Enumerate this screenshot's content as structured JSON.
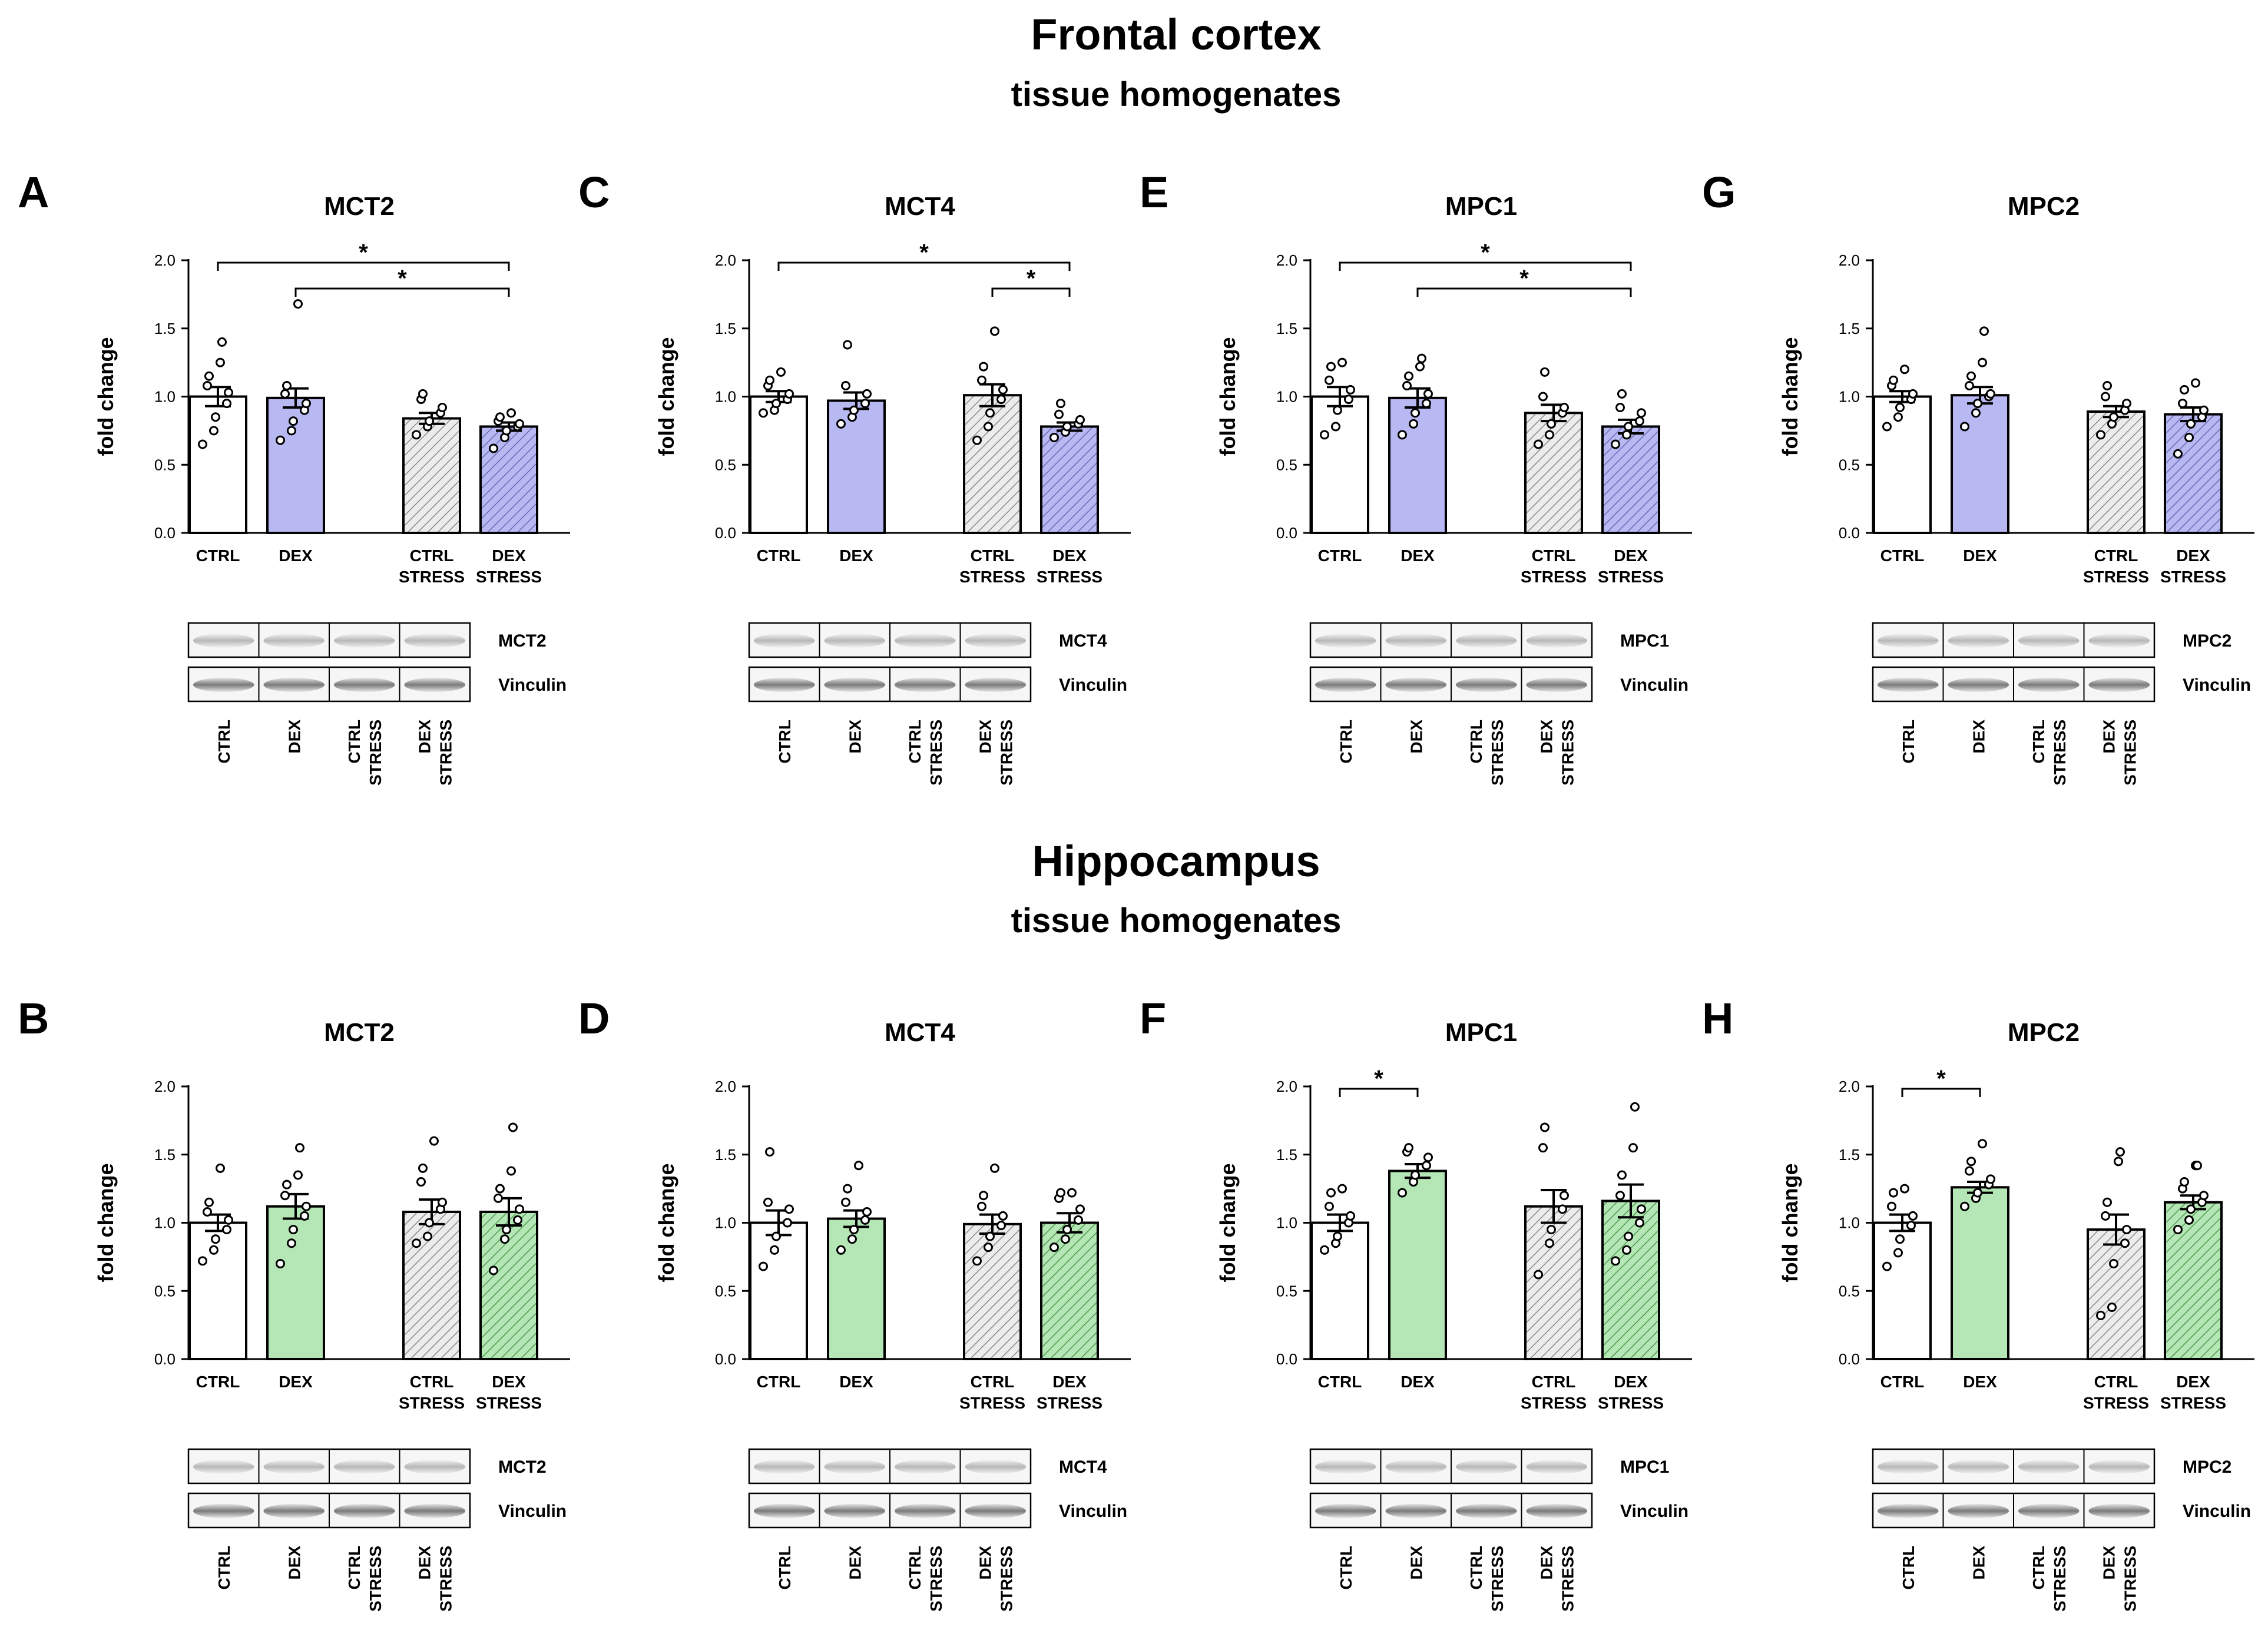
{
  "sections": [
    {
      "title": "Frontal cortex",
      "subtitle": "tissue homogenates"
    },
    {
      "title": "Hippocampus",
      "subtitle": "tissue homogenates"
    }
  ],
  "colors": {
    "frontal_fill": "#b8b8f2",
    "hippo_fill": "#b5e6b5",
    "ctrl_fill": "#ffffff",
    "stress_fill": "#ececec",
    "edge": "#000000"
  },
  "chart_data": [
    {
      "panel": "A",
      "type": "bar",
      "section": 0,
      "title": "MCT2",
      "ylabel": "fold change",
      "ylim": [
        0,
        2.0
      ],
      "yticks": [
        "0.0",
        "0.5",
        "1.0",
        "1.5",
        "2.0"
      ],
      "categories": [
        [
          "CTRL"
        ],
        [
          "DEX"
        ],
        [
          "CTRL",
          "STRESS"
        ],
        [
          "DEX",
          "STRESS"
        ]
      ],
      "values": [
        1.0,
        0.99,
        0.84,
        0.78
      ],
      "sem": [
        0.07,
        0.07,
        0.04,
        0.03
      ],
      "points": [
        [
          0.65,
          0.75,
          0.85,
          0.95,
          1.03,
          1.08,
          1.15,
          1.25,
          1.4
        ],
        [
          0.68,
          0.75,
          0.82,
          0.9,
          0.95,
          1.02,
          1.08,
          1.68
        ],
        [
          0.72,
          0.78,
          0.82,
          0.88,
          0.92,
          0.98,
          1.02
        ],
        [
          0.62,
          0.7,
          0.75,
          0.78,
          0.8,
          0.82,
          0.85,
          0.88
        ]
      ],
      "significance": [
        {
          "from": 0,
          "to": 3,
          "label": "*"
        },
        {
          "from": 1,
          "to": 3,
          "label": "*"
        }
      ],
      "blot": {
        "target": "MCT2",
        "loading": "Vinculin",
        "lanes": [
          [
            "CTRL"
          ],
          [
            "DEX"
          ],
          [
            "CTRL",
            "STRESS"
          ],
          [
            "DEX",
            "STRESS"
          ]
        ]
      }
    },
    {
      "panel": "C",
      "type": "bar",
      "section": 0,
      "title": "MCT4",
      "ylabel": "fold change",
      "ylim": [
        0,
        2.0
      ],
      "yticks": [
        "0.0",
        "0.5",
        "1.0",
        "1.5",
        "2.0"
      ],
      "categories": [
        [
          "CTRL"
        ],
        [
          "DEX"
        ],
        [
          "CTRL",
          "STRESS"
        ],
        [
          "DEX",
          "STRESS"
        ]
      ],
      "values": [
        1.0,
        0.97,
        1.01,
        0.78
      ],
      "sem": [
        0.04,
        0.06,
        0.08,
        0.03
      ],
      "points": [
        [
          0.88,
          0.9,
          0.95,
          0.98,
          1.02,
          1.08,
          1.12,
          1.18
        ],
        [
          0.8,
          0.85,
          0.9,
          0.95,
          1.02,
          1.08,
          1.38
        ],
        [
          0.68,
          0.78,
          0.88,
          0.98,
          1.05,
          1.12,
          1.22,
          1.48
        ],
        [
          0.7,
          0.74,
          0.78,
          0.8,
          0.83,
          0.87,
          0.95
        ]
      ],
      "significance": [
        {
          "from": 0,
          "to": 3,
          "label": "*"
        },
        {
          "from": 2,
          "to": 3,
          "label": "*"
        }
      ],
      "blot": {
        "target": "MCT4",
        "loading": "Vinculin",
        "lanes": [
          [
            "CTRL"
          ],
          [
            "DEX"
          ],
          [
            "CTRL",
            "STRESS"
          ],
          [
            "DEX",
            "STRESS"
          ]
        ]
      }
    },
    {
      "panel": "E",
      "type": "bar",
      "section": 0,
      "title": "MPC1",
      "ylabel": "fold change",
      "ylim": [
        0,
        2.0
      ],
      "yticks": [
        "0.0",
        "0.5",
        "1.0",
        "1.5",
        "2.0"
      ],
      "categories": [
        [
          "CTRL"
        ],
        [
          "DEX"
        ],
        [
          "CTRL",
          "STRESS"
        ],
        [
          "DEX",
          "STRESS"
        ]
      ],
      "values": [
        1.0,
        0.99,
        0.88,
        0.78
      ],
      "sem": [
        0.07,
        0.07,
        0.06,
        0.05
      ],
      "points": [
        [
          0.72,
          0.78,
          0.9,
          0.98,
          1.05,
          1.12,
          1.22,
          1.25
        ],
        [
          0.72,
          0.8,
          0.88,
          0.95,
          1.02,
          1.08,
          1.15,
          1.22,
          1.28
        ],
        [
          0.65,
          0.72,
          0.8,
          0.88,
          0.92,
          1.0,
          1.18
        ],
        [
          0.65,
          0.72,
          0.78,
          0.82,
          0.88,
          0.92,
          1.02
        ]
      ],
      "significance": [
        {
          "from": 0,
          "to": 3,
          "label": "*"
        },
        {
          "from": 1,
          "to": 3,
          "label": "*"
        }
      ],
      "blot": {
        "target": "MPC1",
        "loading": "Vinculin",
        "lanes": [
          [
            "CTRL"
          ],
          [
            "DEX"
          ],
          [
            "CTRL",
            "STRESS"
          ],
          [
            "DEX",
            "STRESS"
          ]
        ]
      }
    },
    {
      "panel": "G",
      "type": "bar",
      "section": 0,
      "title": "MPC2",
      "ylabel": "fold change",
      "ylim": [
        0,
        2.0
      ],
      "yticks": [
        "0.0",
        "0.5",
        "1.0",
        "1.5",
        "2.0"
      ],
      "categories": [
        [
          "CTRL"
        ],
        [
          "DEX"
        ],
        [
          "CTRL",
          "STRESS"
        ],
        [
          "DEX",
          "STRESS"
        ]
      ],
      "values": [
        1.0,
        1.01,
        0.89,
        0.87
      ],
      "sem": [
        0.04,
        0.06,
        0.04,
        0.05
      ],
      "points": [
        [
          0.78,
          0.85,
          0.92,
          0.98,
          1.02,
          1.08,
          1.12,
          1.2
        ],
        [
          0.78,
          0.88,
          0.95,
          1.0,
          1.02,
          1.08,
          1.15,
          1.25,
          1.48
        ],
        [
          0.72,
          0.8,
          0.85,
          0.9,
          0.95,
          1.0,
          1.08
        ],
        [
          0.58,
          0.7,
          0.8,
          0.85,
          0.9,
          0.95,
          1.05,
          1.1
        ]
      ],
      "significance": [],
      "blot": {
        "target": "MPC2",
        "loading": "Vinculin",
        "lanes": [
          [
            "CTRL"
          ],
          [
            "DEX"
          ],
          [
            "CTRL",
            "STRESS"
          ],
          [
            "DEX",
            "STRESS"
          ]
        ]
      }
    },
    {
      "panel": "B",
      "type": "bar",
      "section": 1,
      "title": "MCT2",
      "ylabel": "fold change",
      "ylim": [
        0,
        2.0
      ],
      "yticks": [
        "0.0",
        "0.5",
        "1.0",
        "1.5",
        "2.0"
      ],
      "categories": [
        [
          "CTRL"
        ],
        [
          "DEX"
        ],
        [
          "CTRL",
          "STRESS"
        ],
        [
          "DEX",
          "STRESS"
        ]
      ],
      "values": [
        1.0,
        1.12,
        1.08,
        1.08
      ],
      "sem": [
        0.06,
        0.09,
        0.09,
        0.1
      ],
      "points": [
        [
          0.72,
          0.8,
          0.88,
          0.95,
          1.02,
          1.08,
          1.15,
          1.4
        ],
        [
          0.7,
          0.85,
          0.95,
          1.05,
          1.12,
          1.2,
          1.28,
          1.35,
          1.55
        ],
        [
          0.85,
          0.9,
          1.0,
          1.1,
          1.15,
          1.3,
          1.4,
          1.6
        ],
        [
          0.65,
          0.88,
          0.95,
          1.02,
          1.1,
          1.18,
          1.25,
          1.38,
          1.7
        ]
      ],
      "significance": [],
      "blot": {
        "target": "MCT2",
        "loading": "Vinculin",
        "lanes": [
          [
            "CTRL"
          ],
          [
            "DEX"
          ],
          [
            "CTRL",
            "STRESS"
          ],
          [
            "DEX",
            "STRESS"
          ]
        ]
      }
    },
    {
      "panel": "D",
      "type": "bar",
      "section": 1,
      "title": "MCT4",
      "ylabel": "fold change",
      "ylim": [
        0,
        2.0
      ],
      "yticks": [
        "0.0",
        "0.5",
        "1.0",
        "1.5",
        "2.0"
      ],
      "categories": [
        [
          "CTRL"
        ],
        [
          "DEX"
        ],
        [
          "CTRL",
          "STRESS"
        ],
        [
          "DEX",
          "STRESS"
        ]
      ],
      "values": [
        1.0,
        1.03,
        0.99,
        1.0
      ],
      "sem": [
        0.09,
        0.06,
        0.07,
        0.07
      ],
      "points": [
        [
          0.68,
          0.8,
          0.9,
          1.0,
          1.1,
          1.15,
          1.52
        ],
        [
          0.8,
          0.88,
          0.95,
          1.02,
          1.08,
          1.15,
          1.25,
          1.42
        ],
        [
          0.72,
          0.82,
          0.9,
          0.98,
          1.05,
          1.12,
          1.2,
          1.4
        ],
        [
          0.82,
          0.88,
          0.95,
          1.02,
          1.1,
          1.18,
          1.22,
          1.22
        ]
      ],
      "significance": [],
      "blot": {
        "target": "MCT4",
        "loading": "Vinculin",
        "lanes": [
          [
            "CTRL"
          ],
          [
            "DEX"
          ],
          [
            "CTRL",
            "STRESS"
          ],
          [
            "DEX",
            "STRESS"
          ]
        ]
      }
    },
    {
      "panel": "F",
      "type": "bar",
      "section": 1,
      "title": "MPC1",
      "ylabel": "fold change",
      "ylim": [
        0,
        2.0
      ],
      "yticks": [
        "0.0",
        "0.5",
        "1.0",
        "1.5",
        "2.0"
      ],
      "categories": [
        [
          "CTRL"
        ],
        [
          "DEX"
        ],
        [
          "CTRL",
          "STRESS"
        ],
        [
          "DEX",
          "STRESS"
        ]
      ],
      "values": [
        1.0,
        1.38,
        1.12,
        1.16
      ],
      "sem": [
        0.06,
        0.05,
        0.12,
        0.12
      ],
      "points": [
        [
          0.8,
          0.85,
          0.9,
          1.0,
          1.05,
          1.12,
          1.22,
          1.25
        ],
        [
          1.22,
          1.3,
          1.35,
          1.42,
          1.48,
          1.52,
          1.55
        ],
        [
          0.62,
          0.85,
          0.95,
          1.1,
          1.2,
          1.55,
          1.7
        ],
        [
          0.72,
          0.8,
          0.9,
          1.0,
          1.1,
          1.2,
          1.35,
          1.55,
          1.85
        ]
      ],
      "significance": [
        {
          "from": 0,
          "to": 1,
          "label": "*"
        }
      ],
      "blot": {
        "target": "MPC1",
        "loading": "Vinculin",
        "lanes": [
          [
            "CTRL"
          ],
          [
            "DEX"
          ],
          [
            "CTRL",
            "STRESS"
          ],
          [
            "DEX",
            "STRESS"
          ]
        ]
      }
    },
    {
      "panel": "H",
      "type": "bar",
      "section": 1,
      "title": "MPC2",
      "ylabel": "fold change",
      "ylim": [
        0,
        2.0
      ],
      "yticks": [
        "0.0",
        "0.5",
        "1.0",
        "1.5",
        "2.0"
      ],
      "categories": [
        [
          "CTRL"
        ],
        [
          "DEX"
        ],
        [
          "CTRL",
          "STRESS"
        ],
        [
          "DEX",
          "STRESS"
        ]
      ],
      "values": [
        1.0,
        1.26,
        0.95,
        1.15
      ],
      "sem": [
        0.06,
        0.04,
        0.11,
        0.05
      ],
      "points": [
        [
          0.68,
          0.78,
          0.88,
          0.98,
          1.05,
          1.12,
          1.22,
          1.25
        ],
        [
          1.12,
          1.18,
          1.22,
          1.28,
          1.32,
          1.38,
          1.45,
          1.58
        ],
        [
          0.32,
          0.38,
          0.7,
          0.85,
          0.95,
          1.05,
          1.15,
          1.45,
          1.52
        ],
        [
          0.95,
          1.02,
          1.1,
          1.15,
          1.2,
          1.25,
          1.3,
          1.42,
          1.42
        ]
      ],
      "significance": [
        {
          "from": 0,
          "to": 1,
          "label": "*"
        }
      ],
      "blot": {
        "target": "MPC2",
        "loading": "Vinculin",
        "lanes": [
          [
            "CTRL"
          ],
          [
            "DEX"
          ],
          [
            "CTRL",
            "STRESS"
          ],
          [
            "DEX",
            "STRESS"
          ]
        ]
      }
    }
  ]
}
